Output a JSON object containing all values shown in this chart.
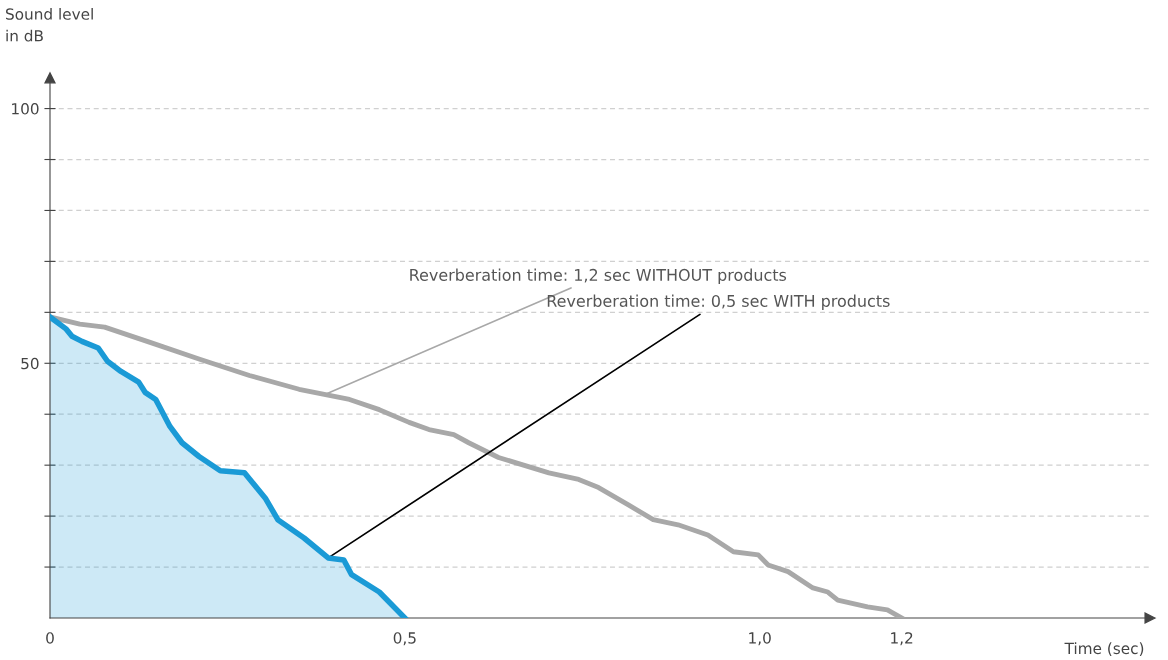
{
  "chart_data": {
    "type": "line",
    "xlabel": "Time (sec)",
    "ylabel": "Sound level\nin dB",
    "xlim": [
      0,
      1.55
    ],
    "ylim": [
      0,
      106
    ],
    "xticks": [
      0,
      {
        "value": 0.5,
        "label": "0,5"
      },
      {
        "value": 1.0,
        "label": "1,0"
      },
      {
        "value": 1.2,
        "label": "1,2"
      }
    ],
    "yticks": [
      {
        "value": 10,
        "label": null
      },
      {
        "value": 20,
        "label": null
      },
      {
        "value": 30,
        "label": null
      },
      {
        "value": 40,
        "label": null
      },
      50,
      {
        "value": 60,
        "label": null
      },
      {
        "value": 70,
        "label": null
      },
      {
        "value": 80,
        "label": null
      },
      {
        "value": 90,
        "label": null
      },
      100
    ],
    "grid": "y",
    "series": [
      {
        "color": "#a8a8a8",
        "x": [
          0,
          0.042,
          0.077,
          0.141,
          0.211,
          0.281,
          0.351,
          0.422,
          0.464,
          0.506,
          0.534,
          0.569,
          0.59,
          0.632,
          0.703,
          0.745,
          0.773,
          0.815,
          0.85,
          0.885,
          0.927,
          0.963,
          0.998,
          1.012,
          1.04,
          1.075,
          1.096,
          1.11,
          1.152,
          1.18,
          1.2
        ],
        "values": [
          59.1,
          57.7,
          57.1,
          54.1,
          50.8,
          47.6,
          44.9,
          42.9,
          40.9,
          38.4,
          37,
          36,
          34.4,
          31.5,
          28.5,
          27.2,
          25.6,
          22.2,
          19.3,
          18.3,
          16.3,
          13,
          12.4,
          10.4,
          9.1,
          5.9,
          5.1,
          3.5,
          2.2,
          1.6,
          0
        ]
      },
      {
        "type": "area",
        "color": "#1a9ad6",
        "x": [
          0,
          0.023,
          0.031,
          0.045,
          0.068,
          0.081,
          0.1,
          0.125,
          0.134,
          0.149,
          0.169,
          0.186,
          0.21,
          0.24,
          0.274,
          0.304,
          0.321,
          0.358,
          0.392,
          0.414,
          0.425,
          0.464,
          0.5
        ],
        "values": [
          59.1,
          56.7,
          55.3,
          54.3,
          53,
          50.4,
          48.4,
          46.3,
          44.3,
          42.9,
          37.6,
          34.4,
          31.7,
          28.9,
          28.5,
          23.4,
          19.3,
          15.7,
          11.8,
          11.4,
          8.5,
          5.1,
          0
        ]
      }
    ],
    "annotations": [
      {
        "text": "Reverberation time: 1,2 sec WITHOUT products",
        "x": 0.388,
        "y": 43.9
      },
      {
        "text": "Reverberation time: 0,5 sec WITH products",
        "x": 0.392,
        "y": 11.8
      }
    ]
  }
}
